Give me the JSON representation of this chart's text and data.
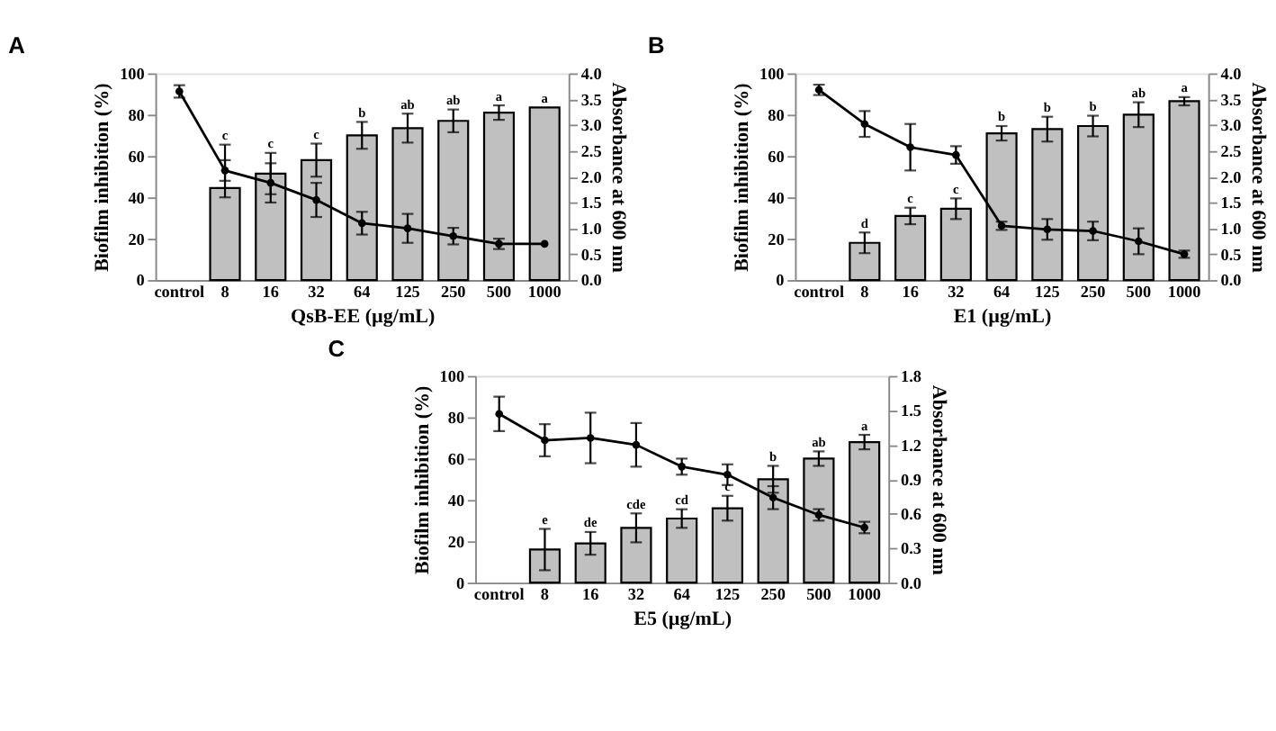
{
  "chart_data": [
    {
      "type": "bar",
      "title": "A",
      "xlabel": "QsB-EE (µg/mL)",
      "ylabel": "Biofilm inhibition (%)",
      "y2label": "Absorbance at 600 nm",
      "categories": [
        "control",
        "8",
        "16",
        "32",
        "64",
        "125",
        "250",
        "500",
        "1000"
      ],
      "series": [
        {
          "color": "#c0c0c0",
          "values": [
            null,
            44.5,
            51.5,
            58,
            70,
            73.5,
            77,
            81,
            83.5
          ],
          "errors": [
            null,
            [
              40,
              65.5
            ],
            10,
            8,
            6.5,
            7,
            5.5,
            3.5,
            null
          ]
        },
        {
          "type": "line",
          "axis": "y2",
          "color": "#000000",
          "marker": "circle",
          "values": [
            3.65,
            2.12,
            1.88,
            1.55,
            1.1,
            1.0,
            0.85,
            0.7,
            0.7
          ],
          "errors": [
            0.12,
            0.2,
            0.38,
            0.33,
            0.22,
            0.28,
            0.16,
            0.1,
            null
          ]
        }
      ],
      "ylim": [
        0,
        100
      ],
      "yticks": [
        0,
        20,
        40,
        60,
        80,
        100
      ],
      "y2lim": [
        0,
        4
      ],
      "y2ticks": [
        {
          "value": 0,
          "label": "0.0"
        },
        0.5,
        {
          "value": 1,
          "label": "1.0"
        },
        1.5,
        {
          "value": 2,
          "label": "2.0"
        },
        2.5,
        {
          "value": 3,
          "label": "3.0"
        },
        3.5,
        {
          "value": 4,
          "label": "4.0"
        }
      ],
      "annotations": [
        {
          "text": "c",
          "x": "8",
          "y": 65.5
        },
        {
          "text": "c",
          "x": "16",
          "y": 61.5
        },
        {
          "text": "c",
          "x": "32",
          "y": 66
        },
        {
          "text": "b",
          "x": "64",
          "y": 76.5
        },
        {
          "text": "ab",
          "x": "125",
          "y": 80.5
        },
        {
          "text": "ab",
          "x": "250",
          "y": 82.5
        },
        {
          "text": "a",
          "x": "500",
          "y": 84.5
        },
        {
          "text": "a",
          "x": "1000",
          "y": 83.5
        }
      ],
      "grid": false
    },
    {
      "type": "bar",
      "title": "B",
      "xlabel": "E1 (µg/mL)",
      "ylabel": "Biofilm inhibition (%)",
      "y2label": "Absorbance at 600 nm",
      "categories": [
        "control",
        "8",
        "16",
        "32",
        "64",
        "125",
        "250",
        "500",
        "1000"
      ],
      "series": [
        {
          "color": "#c0c0c0",
          "values": [
            null,
            18,
            31,
            34.5,
            71,
            73,
            74.5,
            80,
            86.5
          ],
          "errors": [
            null,
            5,
            4,
            5,
            3.5,
            6,
            5,
            6,
            2
          ]
        },
        {
          "type": "line",
          "axis": "y2",
          "color": "#000000",
          "marker": "circle",
          "values": [
            3.68,
            3.02,
            2.57,
            2.42,
            1.05,
            0.98,
            0.95,
            0.75,
            0.5
          ],
          "errors": [
            0.1,
            0.25,
            0.45,
            0.17,
            0.08,
            0.2,
            0.18,
            0.25,
            0.07
          ]
        }
      ],
      "ylim": [
        0,
        100
      ],
      "yticks": [
        0,
        20,
        40,
        60,
        80,
        100
      ],
      "y2lim": [
        0,
        4
      ],
      "y2ticks": [
        {
          "value": 0,
          "label": "0.0"
        },
        0.5,
        {
          "value": 1,
          "label": "1.0"
        },
        1.5,
        {
          "value": 2,
          "label": "2.0"
        },
        2.5,
        {
          "value": 3,
          "label": "3.0"
        },
        3.5,
        {
          "value": 4,
          "label": "4.0"
        }
      ],
      "annotations": [
        {
          "text": "d",
          "x": "8",
          "y": 23
        },
        {
          "text": "c",
          "x": "16",
          "y": 35
        },
        {
          "text": "c",
          "x": "32",
          "y": 39.5
        },
        {
          "text": "b",
          "x": "64",
          "y": 74.5
        },
        {
          "text": "b",
          "x": "125",
          "y": 79
        },
        {
          "text": "b",
          "x": "250",
          "y": 79.5
        },
        {
          "text": "ab",
          "x": "500",
          "y": 86
        },
        {
          "text": "a",
          "x": "1000",
          "y": 88.5
        }
      ],
      "grid": false
    },
    {
      "type": "bar",
      "title": "C",
      "xlabel": "E5 (µg/mL)",
      "ylabel": "Biofilm inhibition (%)",
      "y2label": "Absorbance at 600 nm",
      "categories": [
        "control",
        "8",
        "16",
        "32",
        "64",
        "125",
        "250",
        "500",
        "1000"
      ],
      "series": [
        {
          "color": "#c0c0c0",
          "values": [
            null,
            16,
            19,
            26.5,
            31,
            36,
            50,
            60,
            68
          ],
          "errors": [
            null,
            10,
            5.5,
            7,
            4.5,
            6,
            6.5,
            3.5,
            3.5
          ]
        },
        {
          "type": "line",
          "axis": "y2",
          "color": "#000000",
          "marker": "circle",
          "values": [
            1.47,
            1.24,
            1.26,
            1.2,
            1.01,
            0.94,
            0.74,
            0.59,
            0.48
          ],
          "errors": [
            0.15,
            0.14,
            0.22,
            0.19,
            0.07,
            0.09,
            0.1,
            0.05,
            0.05
          ]
        }
      ],
      "ylim": [
        0,
        100
      ],
      "yticks": [
        0,
        20,
        40,
        60,
        80,
        100
      ],
      "y2lim": [
        0,
        1.8
      ],
      "y2ticks": [
        {
          "value": 0,
          "label": "0.0"
        },
        0.3,
        0.6,
        0.9,
        1.2,
        1.5,
        1.8
      ],
      "annotations": [
        {
          "text": "e",
          "x": "8",
          "y": 26
        },
        {
          "text": "de",
          "x": "16",
          "y": 24.5
        },
        {
          "text": "cde",
          "x": "32",
          "y": 33.5
        },
        {
          "text": "cd",
          "x": "64",
          "y": 35.5
        },
        {
          "text": "c",
          "x": "125",
          "y": 42
        },
        {
          "text": "b",
          "x": "250",
          "y": 56.5
        },
        {
          "text": "ab",
          "x": "500",
          "y": 63.5
        },
        {
          "text": "a",
          "x": "1000",
          "y": 71.5
        }
      ],
      "grid": false
    }
  ]
}
